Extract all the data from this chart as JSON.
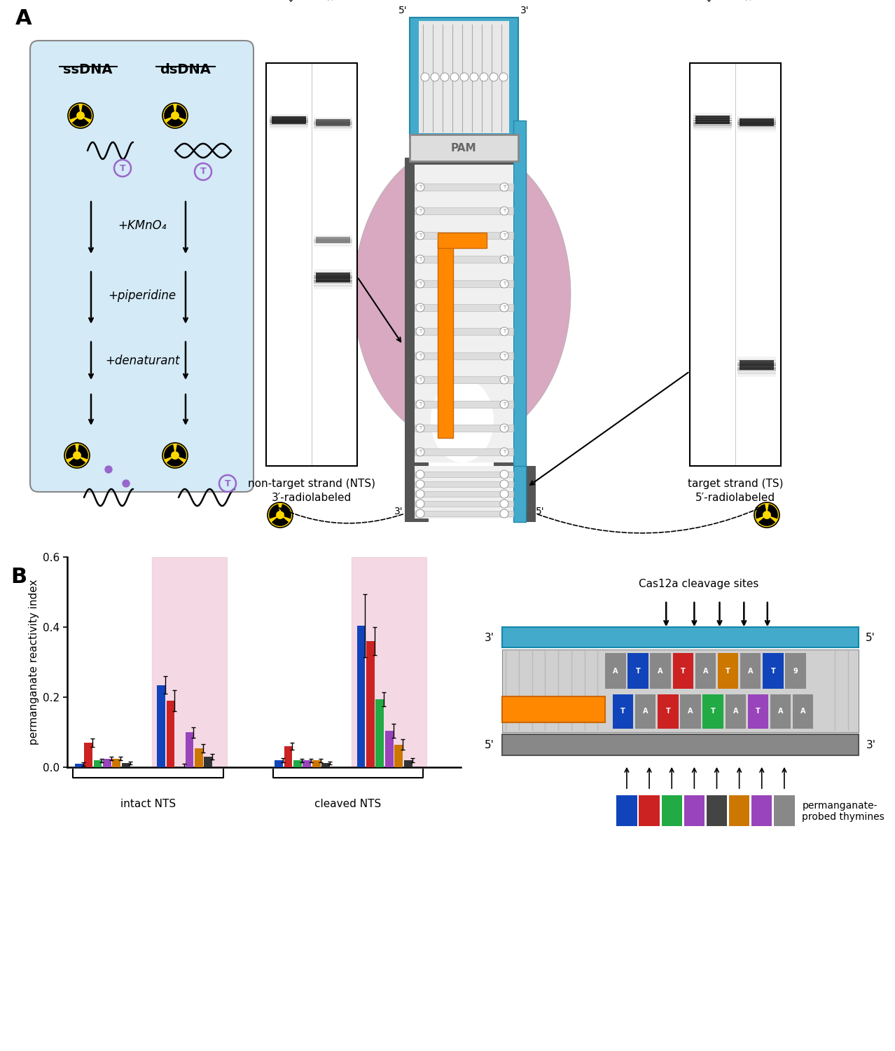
{
  "bar_colors": [
    "#1144BB",
    "#CC2222",
    "#22AA44",
    "#9944BB",
    "#CC7700",
    "#333333"
  ],
  "values_intact_no": [
    0.01,
    0.07,
    0.02,
    0.025,
    0.025,
    0.012
  ],
  "errors_intact_no": [
    0.005,
    0.012,
    0.005,
    0.005,
    0.005,
    0.004
  ],
  "values_intact_yes": [
    0.235,
    0.19,
    0.0,
    0.1,
    0.055,
    0.03
  ],
  "errors_intact_yes": [
    0.025,
    0.03,
    0.01,
    0.015,
    0.012,
    0.008
  ],
  "values_cleaved_no": [
    0.02,
    0.06,
    0.02,
    0.02,
    0.02,
    0.012
  ],
  "errors_cleaved_no": [
    0.006,
    0.01,
    0.005,
    0.005,
    0.005,
    0.004
  ],
  "values_cleaved_yes": [
    0.405,
    0.36,
    0.195,
    0.105,
    0.065,
    0.02
  ],
  "errors_cleaved_yes": [
    0.09,
    0.04,
    0.02,
    0.02,
    0.015,
    0.006
  ],
  "ylim": [
    0,
    0.6
  ],
  "ylabel": "permanganate reactivity index",
  "pink_bg": "#F2D0DF",
  "box_color": "#D4EAF7",
  "gel_bg": "#F5F5F5",
  "blob_color": "#D4A0BB",
  "cyan_color": "#44AACC",
  "orange_color": "#FF8800",
  "gray_dark": "#666666",
  "gray_light": "#CCCCCC",
  "pam_color": "#DDDDDD",
  "purple_T": "#9966CC"
}
